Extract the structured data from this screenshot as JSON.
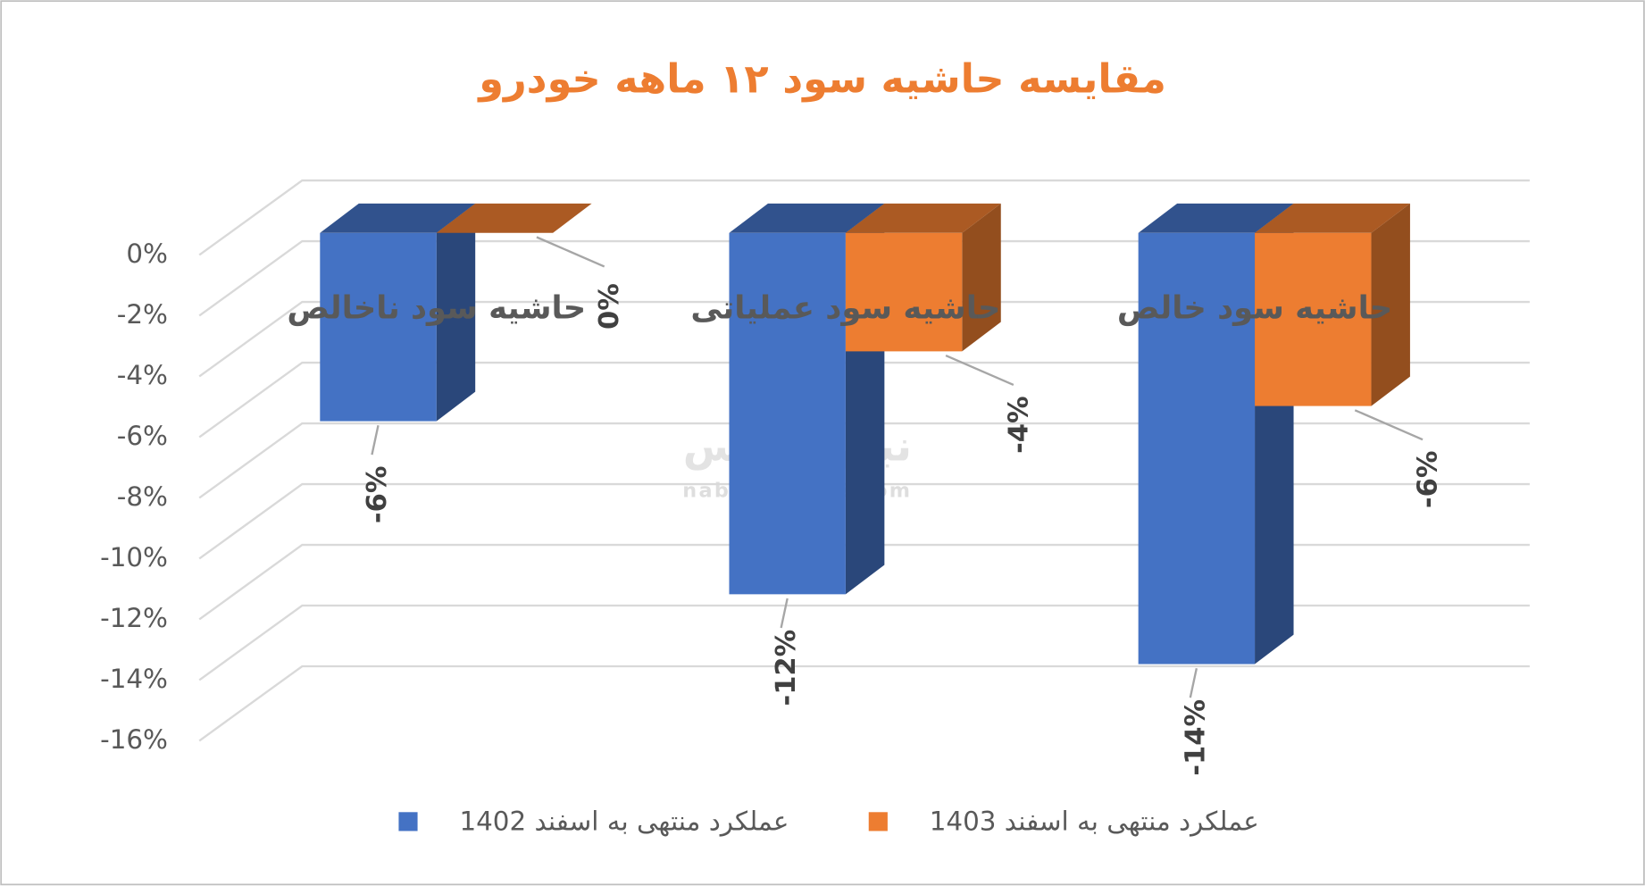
{
  "chart_data": {
    "type": "bar3d",
    "title": "مقایسه حاشیه سود ۱۲ ماهه خودرو",
    "categories": [
      "حاشیه سود ناخالص",
      "حاشیه سود عملیاتی",
      "حاشیه سود خالص"
    ],
    "series": [
      {
        "name": "عملکرد منتهی به اسفند 1402",
        "color": "#4472c4",
        "values": [
          -6.2,
          -11.9,
          -14.2
        ],
        "value_labels": [
          "-6%",
          "-12%",
          "-14%"
        ]
      },
      {
        "name": "عملکرد منتهی به اسفند 1403",
        "color": "#ed7d31",
        "values": [
          0,
          -3.9,
          -5.7
        ],
        "value_labels": [
          "0%",
          "-4%",
          "-6%"
        ]
      }
    ],
    "ylim": [
      -16,
      0
    ],
    "yticks": [
      {
        "value": 0,
        "label": "0%"
      },
      {
        "value": -2,
        "label": "-2%"
      },
      {
        "value": -4,
        "label": "-4%"
      },
      {
        "value": -6,
        "label": "-6%"
      },
      {
        "value": -8,
        "label": "-8%"
      },
      {
        "value": -10,
        "label": "-10%"
      },
      {
        "value": -12,
        "label": "-12%"
      },
      {
        "value": -14,
        "label": "-14%"
      },
      {
        "value": -16,
        "label": "-16%"
      }
    ],
    "grid": true,
    "watermark": [
      "نبض بورس",
      "nabzebourse.com"
    ]
  }
}
